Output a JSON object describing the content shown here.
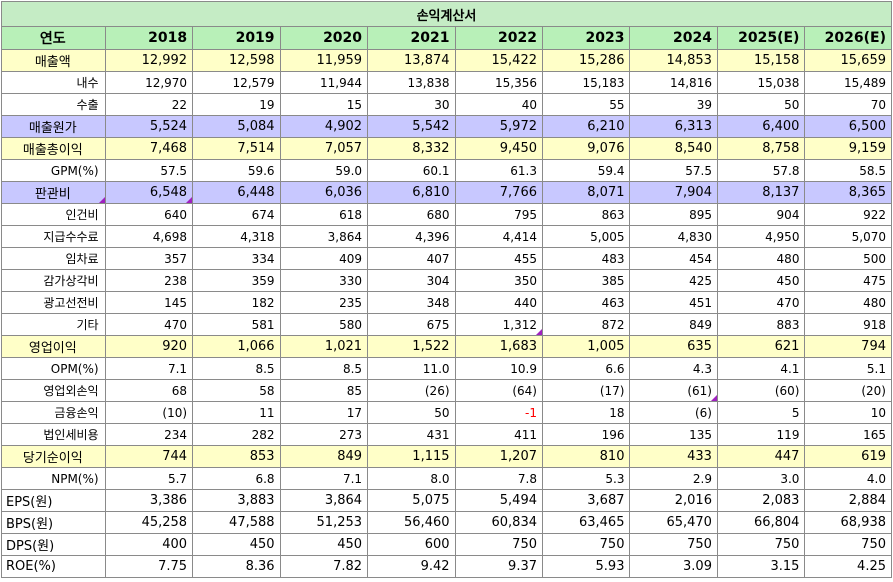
{
  "title": "손익계산서",
  "header": {
    "label": "연도",
    "years": [
      "2018",
      "2019",
      "2020",
      "2021",
      "2022",
      "2023",
      "2024",
      "2025(E)",
      "2026(E)"
    ]
  },
  "rows": [
    {
      "label": "매출액",
      "style": "yellow",
      "values": [
        "12,992",
        "12,598",
        "11,959",
        "13,874",
        "15,422",
        "15,286",
        "14,853",
        "15,158",
        "15,659"
      ]
    },
    {
      "label": "내수",
      "style": "",
      "values": [
        "12,970",
        "12,579",
        "11,944",
        "13,838",
        "15,356",
        "15,183",
        "14,816",
        "15,038",
        "15,489"
      ]
    },
    {
      "label": "수출",
      "style": "",
      "values": [
        "22",
        "19",
        "15",
        "30",
        "40",
        "55",
        "39",
        "50",
        "70"
      ]
    },
    {
      "label": "매출원가",
      "style": "purple",
      "values": [
        "5,524",
        "5,084",
        "4,902",
        "5,542",
        "5,972",
        "6,210",
        "6,313",
        "6,400",
        "6,500"
      ]
    },
    {
      "label": "매출총이익",
      "style": "yellow",
      "values": [
        "7,468",
        "7,514",
        "7,057",
        "8,332",
        "9,450",
        "9,076",
        "8,540",
        "8,758",
        "9,159"
      ]
    },
    {
      "label": "GPM(%)",
      "style": "",
      "values": [
        "57.5",
        "59.6",
        "59.0",
        "60.1",
        "61.3",
        "59.4",
        "57.5",
        "57.8",
        "58.5"
      ]
    },
    {
      "label": "판관비",
      "style": "purple",
      "values": [
        "6,548",
        "6,448",
        "6,036",
        "6,810",
        "7,766",
        "8,071",
        "7,904",
        "8,137",
        "8,365"
      ]
    },
    {
      "label": "인건비",
      "style": "",
      "values": [
        "640",
        "674",
        "618",
        "680",
        "795",
        "863",
        "895",
        "904",
        "922"
      ]
    },
    {
      "label": "지급수수료",
      "style": "",
      "values": [
        "4,698",
        "4,318",
        "3,864",
        "4,396",
        "4,414",
        "5,005",
        "4,830",
        "4,950",
        "5,070"
      ]
    },
    {
      "label": "임차료",
      "style": "",
      "values": [
        "357",
        "334",
        "409",
        "407",
        "455",
        "483",
        "454",
        "480",
        "500"
      ]
    },
    {
      "label": "감가상각비",
      "style": "",
      "values": [
        "238",
        "359",
        "330",
        "304",
        "350",
        "385",
        "425",
        "450",
        "475"
      ]
    },
    {
      "label": "광고선전비",
      "style": "",
      "values": [
        "145",
        "182",
        "235",
        "348",
        "440",
        "463",
        "451",
        "470",
        "480"
      ]
    },
    {
      "label": "기타",
      "style": "",
      "values": [
        "470",
        "581",
        "580",
        "675",
        "1,312",
        "872",
        "849",
        "883",
        "918"
      ]
    },
    {
      "label": "영업이익",
      "style": "yellow",
      "values": [
        "920",
        "1,066",
        "1,021",
        "1,522",
        "1,683",
        "1,005",
        "635",
        "621",
        "794"
      ]
    },
    {
      "label": "OPM(%)",
      "style": "",
      "values": [
        "7.1",
        "8.5",
        "8.5",
        "11.0",
        "10.9",
        "6.6",
        "4.3",
        "4.1",
        "5.1"
      ]
    },
    {
      "label": "영업외손익",
      "style": "",
      "values": [
        "68",
        "58",
        "85",
        "(26)",
        "(64)",
        "(17)",
        "(61)",
        "(60)",
        "(20)"
      ]
    },
    {
      "label": "금융손익",
      "style": "",
      "values": [
        "(10)",
        "11",
        "17",
        "50",
        "-1",
        "18",
        "(6)",
        "5",
        "10"
      ]
    },
    {
      "label": "법인세비용",
      "style": "",
      "values": [
        "234",
        "282",
        "273",
        "431",
        "411",
        "196",
        "135",
        "119",
        "165"
      ]
    },
    {
      "label": "당기순이익",
      "style": "yellow",
      "values": [
        "744",
        "853",
        "849",
        "1,115",
        "1,207",
        "810",
        "433",
        "447",
        "619"
      ]
    },
    {
      "label": "NPM(%)",
      "style": "",
      "values": [
        "5.7",
        "6.8",
        "7.1",
        "8.0",
        "7.8",
        "5.3",
        "2.9",
        "3.0",
        "4.0"
      ]
    },
    {
      "label": "EPS(원)",
      "style": "big",
      "values": [
        "3,386",
        "3,883",
        "3,864",
        "5,075",
        "5,494",
        "3,687",
        "2,016",
        "2,083",
        "2,884"
      ]
    },
    {
      "label": "BPS(원)",
      "style": "big",
      "values": [
        "45,258",
        "47,588",
        "51,253",
        "56,460",
        "60,834",
        "63,465",
        "65,470",
        "66,804",
        "68,938"
      ]
    },
    {
      "label": "DPS(원)",
      "style": "big",
      "values": [
        "400",
        "450",
        "450",
        "600",
        "750",
        "750",
        "750",
        "750",
        "750"
      ]
    },
    {
      "label": "ROE(%)",
      "style": "big",
      "values": [
        "7.75",
        "8.36",
        "7.82",
        "9.42",
        "9.37",
        "5.93",
        "3.09",
        "3.15",
        "4.25"
      ]
    }
  ],
  "colors": {
    "header_green": "#b8f0b8",
    "highlight_yellow": "#ffffc8",
    "highlight_purple": "#c8c8ff",
    "negative_red": "#ff0000",
    "comment_marker": "#a020c0"
  }
}
